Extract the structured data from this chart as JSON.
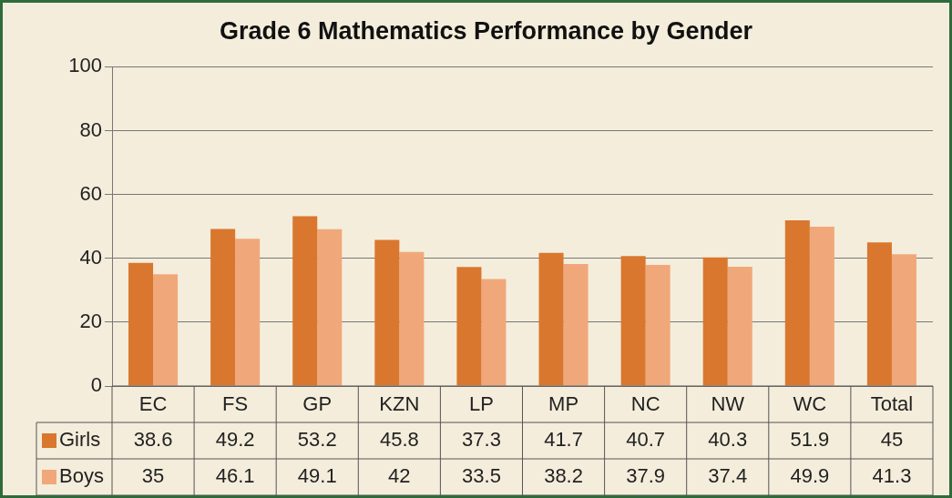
{
  "chart_data": {
    "type": "bar",
    "title": "Grade 6 Mathematics Performance by Gender",
    "categories": [
      "EC",
      "FS",
      "GP",
      "KZN",
      "LP",
      "MP",
      "NC",
      "NW",
      "WC",
      "Total"
    ],
    "series": [
      {
        "name": "Girls",
        "color": "#d9772f",
        "values": [
          38.6,
          49.2,
          53.2,
          45.8,
          37.3,
          41.7,
          40.7,
          40.3,
          51.9,
          45
        ]
      },
      {
        "name": "Boys",
        "color": "#f0a87a",
        "values": [
          35,
          46.1,
          49.1,
          42,
          33.5,
          38.2,
          37.9,
          37.4,
          49.9,
          41.3
        ]
      }
    ],
    "ylim": [
      0,
      100
    ],
    "yticks": [
      0,
      20,
      40,
      60,
      80,
      100
    ],
    "grid": "y",
    "legend": "bottom",
    "data_labels": true
  }
}
